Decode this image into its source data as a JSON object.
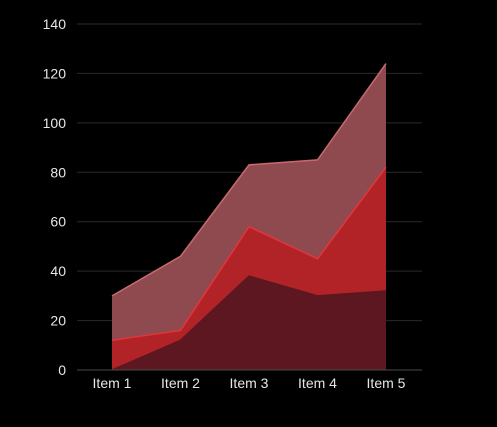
{
  "chart_data": {
    "type": "area",
    "stacked": true,
    "categories": [
      "Item 1",
      "Item 2",
      "Item 3",
      "Item 4",
      "Item 5"
    ],
    "series": [
      {
        "values": [
          0,
          12,
          38,
          30,
          32
        ],
        "color": "#5c1720"
      },
      {
        "values": [
          12,
          4,
          20,
          15,
          50
        ],
        "color": "#b22327"
      },
      {
        "values": [
          18,
          30,
          25,
          40,
          42
        ],
        "color": "#8f4a50"
      }
    ],
    "cumulative_tops": [
      [
        0,
        12,
        38,
        30,
        32
      ],
      [
        12,
        16,
        58,
        45,
        82
      ],
      [
        30,
        46,
        83,
        85,
        124
      ]
    ],
    "line_colors": [
      "#5c1720",
      "#e0353b",
      "#c76a70"
    ],
    "ylim": [
      0,
      140
    ],
    "yticks": [
      0,
      20,
      40,
      60,
      80,
      100,
      120,
      140
    ],
    "grid": true,
    "legend": "none",
    "title": "",
    "xlabel": "",
    "ylabel": ""
  }
}
